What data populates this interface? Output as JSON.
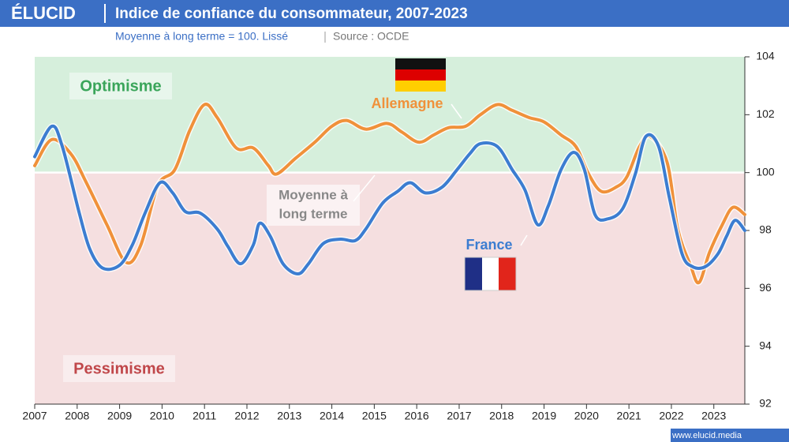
{
  "logo": "ÉLUCID",
  "website": "www.elucid.media",
  "chart_data": {
    "type": "line",
    "title": "Indice de confiance du consommateur, 2007-2023",
    "subtitle": "Moyenne à long terme = 100. Lissé",
    "source": "Source : OCDE",
    "xlim": [
      2007,
      2023.73
    ],
    "xticks": [
      2007,
      2008,
      2009,
      2010,
      2011,
      2012,
      2013,
      2014,
      2015,
      2016,
      2017,
      2018,
      2019,
      2020,
      2021,
      2022,
      2023
    ],
    "ylim": [
      92,
      104
    ],
    "yticks": [
      92,
      94,
      96,
      98,
      100,
      102,
      104
    ],
    "reference": 100,
    "reference_label": [
      "Moyenne à",
      "long terme"
    ],
    "zones": [
      {
        "label": "Optimisme",
        "color": "#d6efdc",
        "text_color": "#3aa55a"
      },
      {
        "label": "Pessimisme",
        "color": "#f5dfe0",
        "text_color": "#c0474a"
      }
    ],
    "series": [
      {
        "name": "Allemagne",
        "color": "#f0913a",
        "x": [
          2007.0,
          2007.4,
          2007.85,
          2008.2,
          2008.7,
          2009.15,
          2009.5,
          2009.9,
          2010.3,
          2010.65,
          2011.0,
          2011.3,
          2011.75,
          2012.15,
          2012.5,
          2012.7,
          2013.15,
          2013.6,
          2014.0,
          2014.35,
          2014.8,
          2015.3,
          2015.65,
          2016.05,
          2016.4,
          2016.75,
          2017.15,
          2017.5,
          2017.9,
          2018.25,
          2018.65,
          2019.0,
          2019.4,
          2019.75,
          2020.05,
          2020.35,
          2020.7,
          2020.95,
          2021.25,
          2021.5,
          2021.9,
          2022.15,
          2022.45,
          2022.65,
          2022.9,
          2023.2,
          2023.45,
          2023.73
        ],
        "values": [
          100.24,
          101.14,
          100.65,
          99.7,
          98.2,
          96.9,
          97.5,
          99.55,
          100.1,
          101.45,
          102.35,
          101.9,
          100.85,
          100.85,
          100.25,
          99.95,
          100.5,
          101.05,
          101.6,
          101.8,
          101.5,
          101.7,
          101.4,
          101.05,
          101.3,
          101.55,
          101.6,
          102.0,
          102.35,
          102.15,
          101.9,
          101.75,
          101.3,
          100.9,
          99.95,
          99.35,
          99.5,
          99.85,
          100.9,
          101.25,
          100.35,
          98.05,
          96.8,
          96.2,
          97.25,
          98.2,
          98.8,
          98.55
        ]
      },
      {
        "name": "France",
        "color": "#3c7dd1",
        "x": [
          2007.0,
          2007.4,
          2007.65,
          2008.05,
          2008.3,
          2008.6,
          2009.0,
          2009.3,
          2009.6,
          2009.95,
          2010.25,
          2010.55,
          2010.9,
          2011.3,
          2011.55,
          2011.85,
          2012.15,
          2012.3,
          2012.55,
          2012.85,
          2013.2,
          2013.45,
          2013.8,
          2014.2,
          2014.55,
          2014.8,
          2015.2,
          2015.55,
          2015.85,
          2016.2,
          2016.6,
          2016.95,
          2017.25,
          2017.5,
          2017.9,
          2018.25,
          2018.55,
          2018.85,
          2019.1,
          2019.4,
          2019.7,
          2019.95,
          2020.2,
          2020.5,
          2020.85,
          2021.15,
          2021.4,
          2021.7,
          2021.95,
          2022.25,
          2022.5,
          2022.8,
          2023.1,
          2023.3,
          2023.5,
          2023.73
        ],
        "values": [
          100.55,
          101.6,
          100.9,
          98.6,
          97.35,
          96.7,
          96.8,
          97.5,
          98.6,
          99.65,
          99.3,
          98.65,
          98.6,
          98.05,
          97.45,
          96.85,
          97.5,
          98.25,
          97.8,
          96.85,
          96.5,
          96.85,
          97.55,
          97.7,
          97.65,
          98.05,
          98.95,
          99.35,
          99.65,
          99.3,
          99.5,
          100.1,
          100.65,
          101.0,
          100.9,
          100.1,
          99.4,
          98.2,
          98.85,
          100.1,
          100.7,
          100.1,
          98.55,
          98.4,
          98.75,
          99.95,
          101.25,
          100.9,
          99.15,
          97.2,
          96.75,
          96.75,
          97.2,
          97.8,
          98.35,
          98.0
        ]
      }
    ]
  }
}
